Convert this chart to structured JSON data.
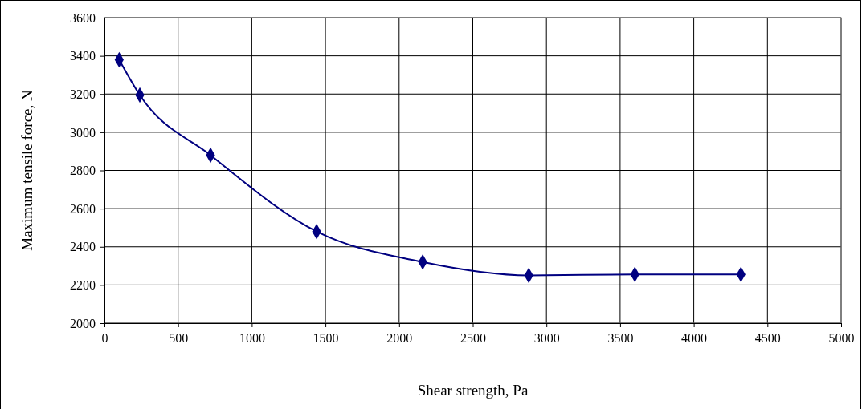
{
  "chart_data": {
    "type": "line",
    "xlabel": "Shear strength, Pa",
    "ylabel": "Maximum tensile force, N",
    "x": [
      100,
      240,
      720,
      1440,
      2160,
      2880,
      3600,
      4320
    ],
    "series": [
      {
        "color": "#000080",
        "values": [
          3380,
          3195,
          2880,
          2480,
          2320,
          2250,
          2255,
          2255
        ]
      }
    ],
    "xlim": [
      0,
      5000
    ],
    "xticks": [
      0,
      500,
      1000,
      1500,
      2000,
      2500,
      3000,
      3500,
      4000,
      4500,
      5000
    ],
    "ylim": [
      2000,
      3600
    ],
    "yticks": [
      2000,
      2200,
      2400,
      2600,
      2800,
      3000,
      3200,
      3400,
      3600
    ],
    "grid": true,
    "marker": "diamond"
  }
}
